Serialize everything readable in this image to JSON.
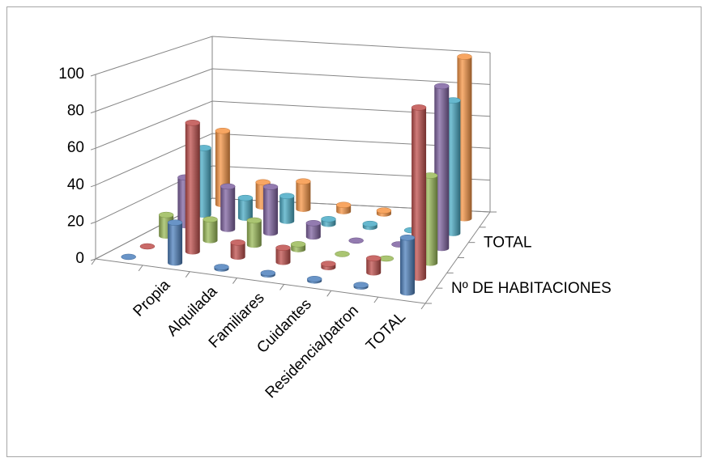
{
  "chart_data": {
    "type": "bar3d",
    "categories": [
      null,
      "Propia",
      "Alquilada",
      "Familiares",
      "Cuidantes",
      "Residencia/patron",
      "TOTAL"
    ],
    "series": [
      {
        "name": null,
        "color": "#4f81bd",
        "values": [
          0,
          22,
          1,
          1,
          1,
          1,
          30
        ]
      },
      {
        "name": "Nº DE HABITACIONES",
        "color": "#c0504d",
        "values": [
          0,
          72,
          8,
          8,
          2,
          8,
          95
        ]
      },
      {
        "name": null,
        "color": "#9bbb59",
        "values": [
          12,
          12,
          14,
          3,
          0,
          0,
          50
        ]
      },
      {
        "name": null,
        "color": "#8064a2",
        "values": [
          28,
          25,
          27,
          8,
          0,
          0,
          95
        ]
      },
      {
        "name": "TOTAL",
        "color": "#4bacc6",
        "values": [
          40,
          12,
          15,
          3,
          2,
          0,
          80
        ]
      },
      {
        "name": null,
        "color": "#f79646",
        "values": [
          45,
          15,
          17,
          4,
          2,
          0,
          100
        ]
      }
    ],
    "ylim": [
      0,
      100
    ],
    "yticks": [
      0,
      20,
      40,
      60,
      80,
      100
    ],
    "grid": true
  }
}
